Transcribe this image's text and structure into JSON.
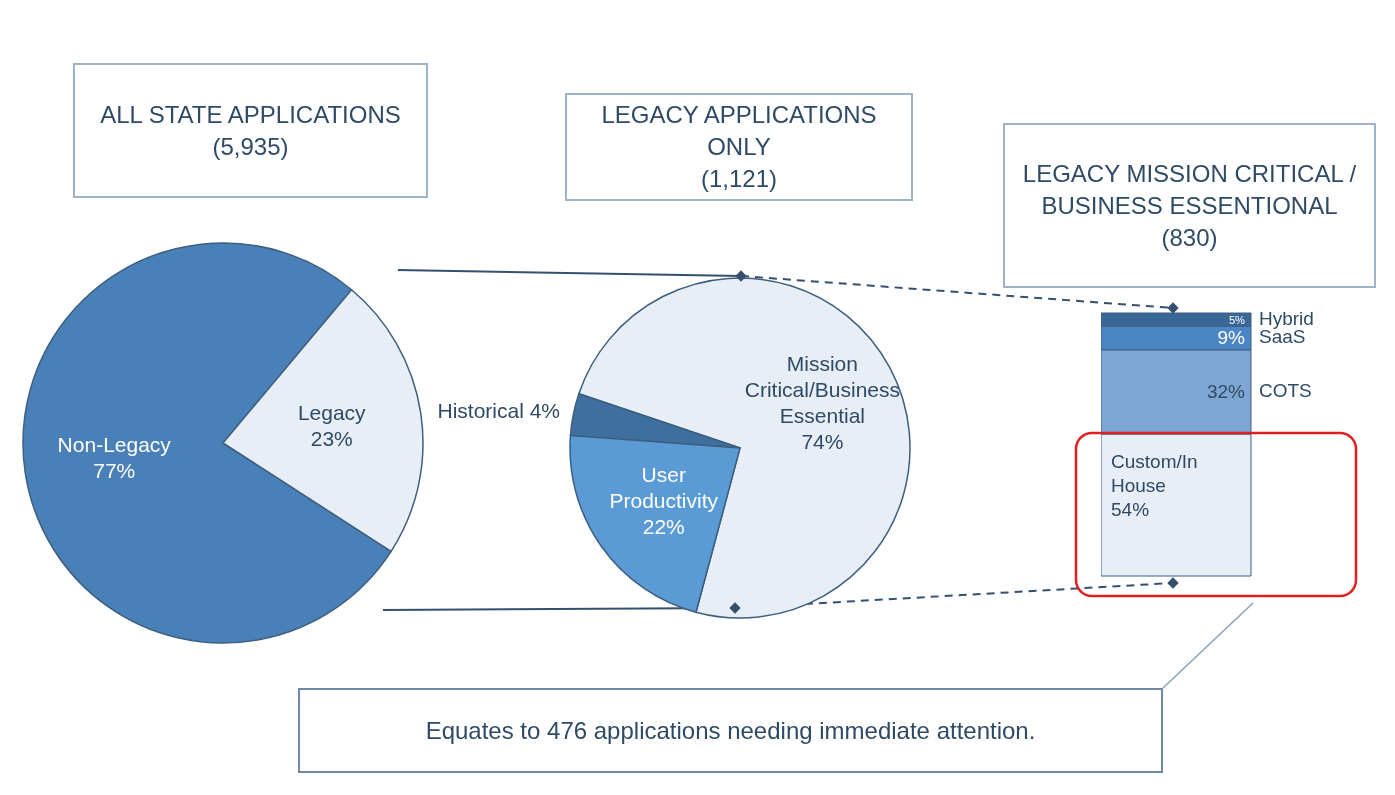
{
  "chart_data": [
    {
      "type": "pie",
      "title": "ALL STATE APPLICATIONS",
      "subtitle": "(5,935)",
      "categories": [
        "Non-Legacy",
        "Legacy"
      ],
      "values": [
        77,
        23
      ],
      "value_labels": [
        "77%",
        "23%"
      ],
      "colors": [
        "#4a80b8",
        "#e8eef6"
      ]
    },
    {
      "type": "pie",
      "title": "LEGACY APPLICATIONS ONLY",
      "subtitle": "(1,121)",
      "categories": [
        "Mission Critical/Business Essential",
        "Historical",
        "User Productivity"
      ],
      "values": [
        74,
        4,
        22
      ],
      "value_labels": [
        "74%",
        "4%",
        "22%"
      ],
      "colors": [
        "#e8eef6",
        "#3f6f9e",
        "#5b9bd5"
      ]
    },
    {
      "type": "bar",
      "stacked": true,
      "tick_labels": false,
      "title": "LEGACY MISSION CRITICAL / BUSINESS ESSENTIONAL",
      "subtitle": "(830)",
      "categories": [
        null
      ],
      "series": [
        {
          "name": "Custom/In House",
          "color": "#e8eef6",
          "values": [
            54
          ],
          "value_labels": [
            "54%"
          ]
        },
        {
          "name": "COTS",
          "color": "#7ea6d4",
          "values": [
            32
          ],
          "value_labels": [
            "32%"
          ]
        },
        {
          "name": "SaaS",
          "color": "#4a86c5",
          "values": [
            9
          ],
          "value_labels": [
            "9%"
          ]
        },
        {
          "name": "Hybrid",
          "color": "#3a6795",
          "values": [
            5
          ],
          "value_labels": [
            "5%"
          ]
        }
      ],
      "annotations": [
        "Equates to 476 applications needing immediate attention."
      ]
    }
  ]
}
